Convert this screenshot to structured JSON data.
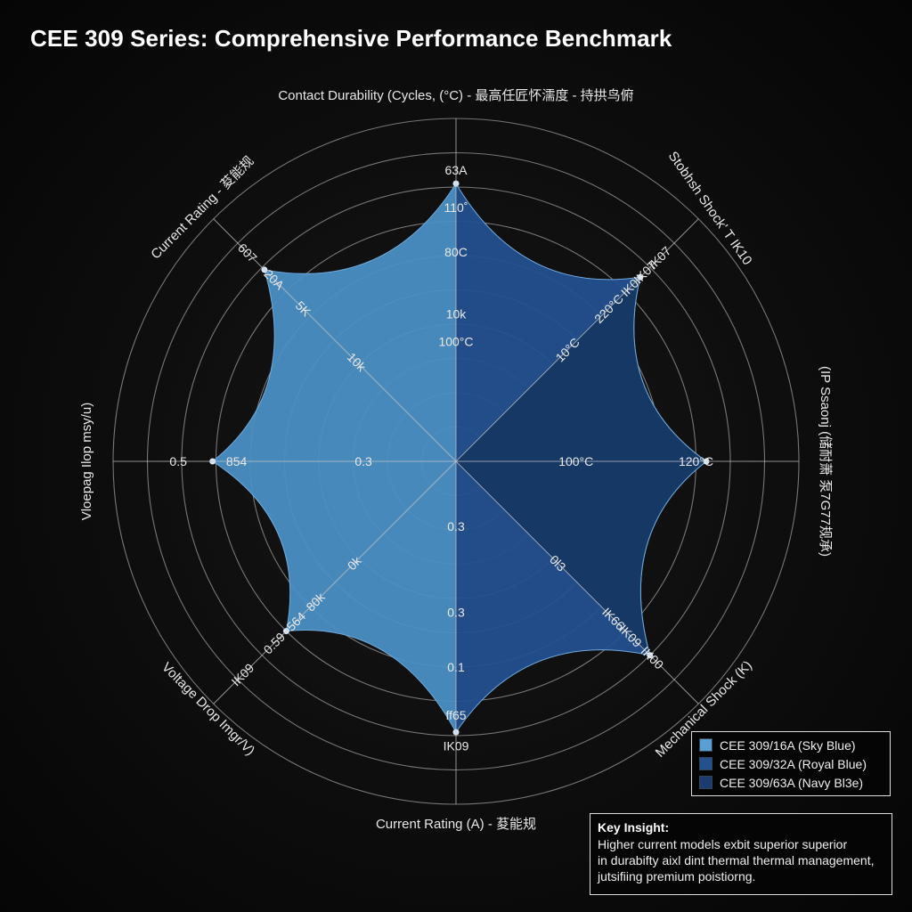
{
  "title": "CEE 309 Series: Comprehensive Performance Benchmark",
  "chart_data": {
    "type": "radar",
    "title": "CEE 309 Series: Comprehensive Performance Benchmark",
    "categories": [
      "Contact Durability (Cycles, (°C) - 最高任匠怀濡度 - 持拱鸟俯",
      "Stobhsh Shock' T IK10",
      "(IP  Ssaonj (储耐萧 泵7G77规承)",
      "Mechanical Shock (K)",
      "Current Rating (A) - 荾能规",
      "Voltage Drop Imgr/V)",
      "Vloepag Ilop msy/u)",
      "Current Rating - 荾能规"
    ],
    "rlim": [
      0,
      10
    ],
    "ring_count": 10,
    "grid": true,
    "values": [
      8.1,
      7.6,
      7.3,
      8.0,
      7.9,
      7.0,
      7.1,
      7.9
    ],
    "series": [
      {
        "name": "CEE 309/16A (Sky Blue)",
        "color": "#4a8fc4",
        "sector": "left half"
      },
      {
        "name": "CEE 309/32A (Royal Blue)",
        "color": "#23508e",
        "sector": "upper-right and lower-right"
      },
      {
        "name": "CEE 309/63A (Navy Bl3e)",
        "color": "#163763",
        "sector": "right"
      }
    ],
    "value_labels": [
      {
        "axis": 0,
        "r": 8.5,
        "text": "63A"
      },
      {
        "axis": 0,
        "r": 7.4,
        "text": "110˚"
      },
      {
        "axis": 0,
        "r": 6.1,
        "text": "80C"
      },
      {
        "axis": 0,
        "r": 4.3,
        "text": "10k"
      },
      {
        "axis": 0,
        "r": 3.5,
        "text": "100°C"
      },
      {
        "axis": 1,
        "r": 8.4,
        "text": "IK07"
      },
      {
        "axis": 1,
        "r": 7.8,
        "text": "IK07"
      },
      {
        "axis": 1,
        "r": 7.2,
        "text": "IK0'"
      },
      {
        "axis": 1,
        "r": 6.3,
        "text": "220°C"
      },
      {
        "axis": 1,
        "r": 4.6,
        "text": "10°C"
      },
      {
        "axis": 2,
        "r": 3.5,
        "text": "100°C"
      },
      {
        "axis": 2,
        "r": 7.0,
        "text": "120°C"
      },
      {
        "axis": 3,
        "r": 4.2,
        "text": "0l3"
      },
      {
        "axis": 3,
        "r": 6.5,
        "text": "IK66"
      },
      {
        "axis": 3,
        "r": 7.2,
        "text": "IK09"
      },
      {
        "axis": 3,
        "r": 8.1,
        "text": "IK00"
      },
      {
        "axis": 4,
        "r": 1.9,
        "text": "0.3"
      },
      {
        "axis": 4,
        "r": 4.4,
        "text": "0.3"
      },
      {
        "axis": 4,
        "r": 6.0,
        "text": "0.1"
      },
      {
        "axis": 4,
        "r": 7.4,
        "text": "ff65"
      },
      {
        "axis": 4,
        "r": 8.3,
        "text": "IK09"
      },
      {
        "axis": 5,
        "r": 4.2,
        "text": "0k"
      },
      {
        "axis": 5,
        "r": 5.8,
        "text": "80k"
      },
      {
        "axis": 5,
        "r": 6.6,
        "text": "564"
      },
      {
        "axis": 5,
        "r": 7.5,
        "text": "0.59"
      },
      {
        "axis": 5,
        "r": 8.8,
        "text": "IK09"
      },
      {
        "axis": 6,
        "r": 8.1,
        "text": "0.5"
      },
      {
        "axis": 6,
        "r": 6.4,
        "text": "854"
      },
      {
        "axis": 6,
        "r": 2.7,
        "text": "0.3"
      },
      {
        "axis": 7,
        "r": 8.6,
        "text": "607"
      },
      {
        "axis": 7,
        "r": 7.5,
        "text": "20A"
      },
      {
        "axis": 7,
        "r": 6.3,
        "text": "5K"
      },
      {
        "axis": 7,
        "r": 4.1,
        "text": "10k"
      }
    ]
  },
  "legend": {
    "items": [
      {
        "label": "CEE 309/16A (Sky Blue)",
        "color": "#5a9fd4"
      },
      {
        "label": "CEE 309/32A (Royal Blue)",
        "color": "#24508f"
      },
      {
        "label": "CEE 309/63A (Navy Bl3e)",
        "color": "#1a3c6e"
      }
    ]
  },
  "insight": {
    "title": "Key Insight:",
    "lines": [
      "Higher current models exbit superior superior",
      "in durabifty aixl dint thermal thermal management,",
      "jutsifiing premium poistiorng."
    ]
  }
}
